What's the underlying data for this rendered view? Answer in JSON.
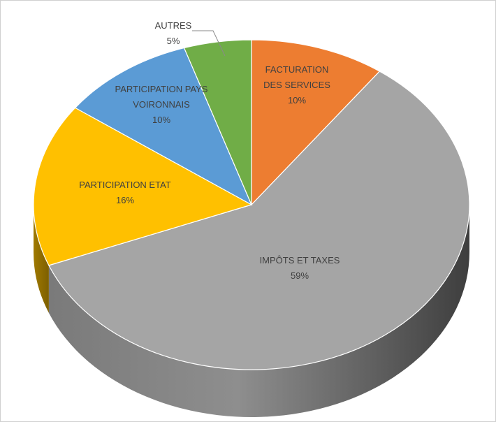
{
  "chart_data": {
    "type": "pie",
    "title": "",
    "slices": [
      {
        "label_lines": [
          "FACTURATION",
          "DES SERVICES"
        ],
        "pct_label": "10%",
        "value": 10,
        "color": "#ED7D31"
      },
      {
        "label_lines": [
          "IMPÔTS ET TAXES"
        ],
        "pct_label": "59%",
        "value": 59,
        "color": "#A5A5A5"
      },
      {
        "label_lines": [
          "PARTICIPATION ETAT"
        ],
        "pct_label": "16%",
        "value": 16,
        "color": "#FFC000"
      },
      {
        "label_lines": [
          "PARTICIPATION PAYS",
          "VOIRONNAIS"
        ],
        "pct_label": "10%",
        "value": 10,
        "color": "#5B9BD5"
      },
      {
        "label_lines": [
          "AUTRES"
        ],
        "pct_label": "5%",
        "value": 5,
        "color": "#70AD47"
      }
    ],
    "legend": "none",
    "style": "3d-perspective"
  }
}
